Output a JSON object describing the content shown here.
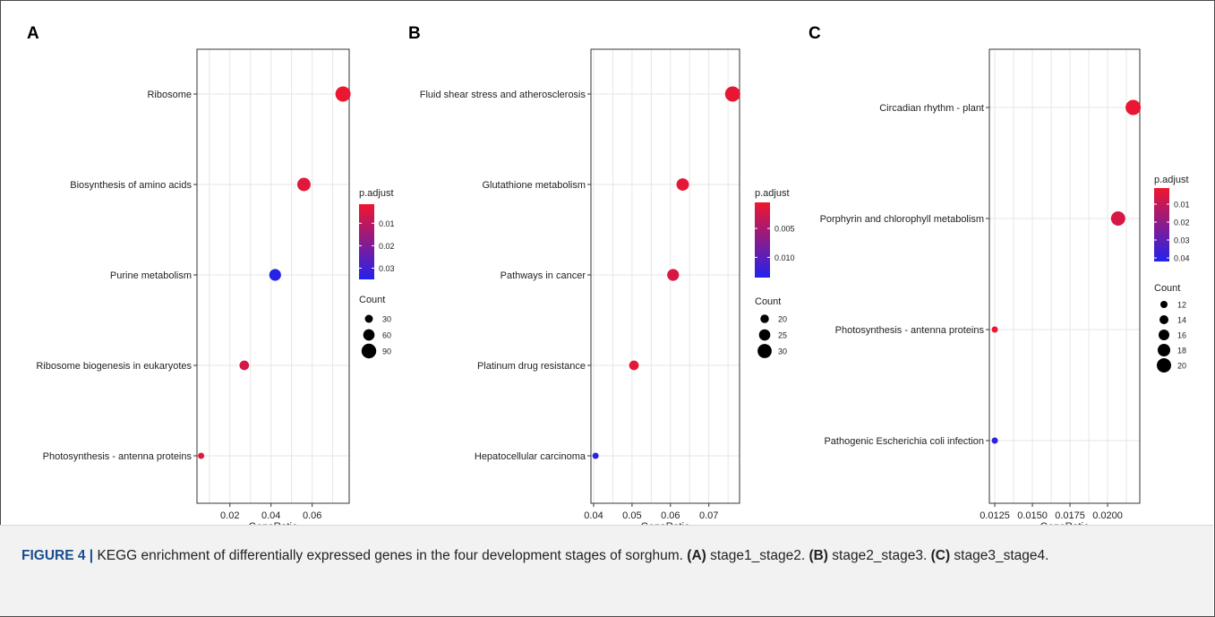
{
  "colors": {
    "high_significance": "#f0162d",
    "low_significance": "#2222ee",
    "grid": "#e6e6e6",
    "axis": "#333333"
  },
  "size_legend_title": "Count",
  "color_legend_title": "p.adjust",
  "chart_data": [
    {
      "type": "scatter",
      "panel": "A",
      "xlabel": "GeneRatio",
      "xticks": [
        "0.02",
        "0.04",
        "0.06"
      ],
      "xlim": [
        0.004,
        0.078
      ],
      "categories": [
        "Ribosome",
        "Biosynthesis of amino acids",
        "Purine metabolism",
        "Ribosome biogenesis in eukaryotes",
        "Photosynthesis - antenna proteins"
      ],
      "x": [
        0.075,
        0.056,
        0.042,
        0.027,
        0.006
      ],
      "count": [
        95,
        78,
        64,
        44,
        14
      ],
      "p_adjust": [
        0.002,
        0.004,
        0.034,
        0.006,
        0.004
      ],
      "color_scale": {
        "min": 0.0015,
        "max": 0.035,
        "ticks": [
          "0.01",
          "0.02",
          "0.03"
        ],
        "tick_values": [
          0.01,
          0.02,
          0.03
        ]
      },
      "size_legend": {
        "labels": [
          "30",
          "60",
          "90"
        ],
        "values": [
          30,
          60,
          90
        ],
        "min": 14,
        "max": 95
      }
    },
    {
      "type": "scatter",
      "panel": "B",
      "xlabel": "GeneRatio",
      "xticks": [
        "0.04",
        "0.05",
        "0.06",
        "0.07"
      ],
      "xlim": [
        0.0393,
        0.078
      ],
      "categories": [
        "Fluid shear stress and atherosclerosis",
        "Glutathione metabolism",
        "Pathways in cancer",
        "Platinum drug resistance",
        "Hepatocellular carcinoma"
      ],
      "x": [
        0.0762,
        0.0632,
        0.0607,
        0.0505,
        0.0405
      ],
      "count": [
        32,
        27,
        26,
        22,
        16
      ],
      "p_adjust": [
        0.001,
        0.0012,
        0.002,
        0.0012,
        0.013
      ],
      "color_scale": {
        "min": 0.0005,
        "max": 0.0135,
        "ticks": [
          "0.005",
          "0.010"
        ],
        "tick_values": [
          0.005,
          0.01
        ]
      },
      "size_legend": {
        "labels": [
          "20",
          "25",
          "30"
        ],
        "values": [
          20,
          25,
          30
        ],
        "min": 16,
        "max": 32
      }
    },
    {
      "type": "scatter",
      "panel": "C",
      "xlabel": "GeneRatio",
      "xticks": [
        "0.0125",
        "0.0150",
        "0.0175",
        "0.0200"
      ],
      "xlim": [
        0.01214,
        0.02214
      ],
      "categories": [
        "Circadian rhythm - plant",
        "Porphyrin and chlorophyll metabolism",
        "Photosynthesis - antenna proteins",
        "Pathogenic Escherichia coli infection"
      ],
      "x": [
        0.0217,
        0.0207,
        0.0125,
        0.0125
      ],
      "count": [
        21,
        20,
        11,
        11
      ],
      "p_adjust": [
        0.002,
        0.006,
        0.002,
        0.04
      ],
      "color_scale": {
        "min": 0.001,
        "max": 0.042,
        "ticks": [
          "0.01",
          "0.02",
          "0.03",
          "0.04"
        ],
        "tick_values": [
          0.01,
          0.02,
          0.03,
          0.04
        ]
      },
      "size_legend": {
        "labels": [
          "12",
          "14",
          "16",
          "18",
          "20"
        ],
        "values": [
          12,
          14,
          16,
          18,
          20
        ],
        "min": 11,
        "max": 21
      }
    }
  ],
  "caption": {
    "figure_label": "FIGURE 4 |",
    "text": " KEGG enrichment of differentially expressed genes in the four development stages of sorghum. ",
    "a_label": "(A)",
    "a_text": " stage1_stage2. ",
    "b_label": "(B)",
    "b_text": " stage2_stage3. ",
    "c_label": "(C)",
    "c_text": " stage3_stage4."
  }
}
